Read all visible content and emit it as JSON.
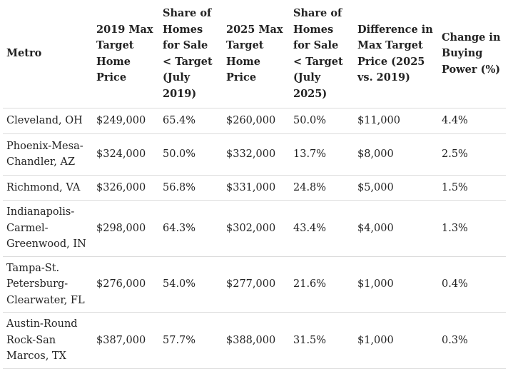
{
  "table": {
    "headers": [
      "Metro",
      "2019 Max Target Home Price",
      "Share of Homes for Sale < Target (July 2019)",
      "2025 Max Target Home Price",
      "Share of Homes for Sale < Target (July 2025)",
      "Difference in Max Target Price (2025 vs. 2019)",
      "Change in Buying Power (%)"
    ],
    "rows": [
      [
        "Cleveland, OH",
        "$249,000",
        "65.4%",
        "$260,000",
        "50.0%",
        "$11,000",
        "4.4%"
      ],
      [
        "Phoenix-Mesa-Chandler, AZ",
        "$324,000",
        "50.0%",
        "$332,000",
        "13.7%",
        "$8,000",
        "2.5%"
      ],
      [
        "Richmond, VA",
        "$326,000",
        "56.8%",
        "$331,000",
        "24.8%",
        "$5,000",
        "1.5%"
      ],
      [
        "Indianapolis-Carmel-Greenwood, IN",
        "$298,000",
        "64.3%",
        "$302,000",
        "43.4%",
        "$4,000",
        "1.3%"
      ],
      [
        "Tampa-St. Petersburg-Clearwater, FL",
        "$276,000",
        "54.0%",
        "$277,000",
        "21.6%",
        "$1,000",
        "0.4%"
      ],
      [
        "Austin-Round Rock-San Marcos, TX",
        "$387,000",
        "57.7%",
        "$388,000",
        "31.5%",
        "$1,000",
        "0.3%"
      ]
    ]
  }
}
